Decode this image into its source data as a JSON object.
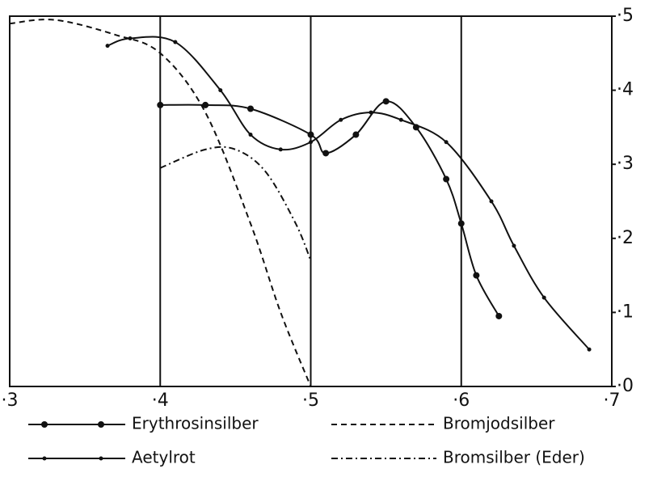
{
  "chart_data": {
    "type": "line",
    "series": [
      {
        "name": "Erythrosinsilber",
        "color": "#111111",
        "dash": "solid",
        "marker": "big",
        "x": [
          0.4,
          0.43,
          0.46,
          0.5,
          0.51,
          0.53,
          0.55,
          0.57,
          0.59,
          0.6,
          0.61,
          0.625
        ],
        "values": [
          0.38,
          0.38,
          0.375,
          0.34,
          0.315,
          0.34,
          0.385,
          0.35,
          0.28,
          0.22,
          0.15,
          0.095
        ]
      },
      {
        "name": "Bromjodsilber",
        "color": "#111111",
        "dash": "dashed",
        "marker": "none",
        "x": [
          0.3,
          0.33,
          0.37,
          0.4,
          0.43,
          0.46,
          0.48,
          0.5
        ],
        "values": [
          0.49,
          0.495,
          0.475,
          0.45,
          0.37,
          0.22,
          0.1,
          0.0
        ]
      },
      {
        "name": "Aetylrot",
        "color": "#111111",
        "dash": "solid",
        "marker": "small",
        "x": [
          0.365,
          0.38,
          0.41,
          0.44,
          0.46,
          0.48,
          0.5,
          0.52,
          0.54,
          0.56,
          0.59,
          0.62,
          0.635,
          0.655,
          0.685
        ],
        "values": [
          0.46,
          0.47,
          0.465,
          0.4,
          0.34,
          0.32,
          0.33,
          0.36,
          0.37,
          0.36,
          0.33,
          0.25,
          0.19,
          0.12,
          0.05
        ]
      },
      {
        "name": "Bromsilber (Eder)",
        "color": "#111111",
        "dash": "dashdot",
        "marker": "none",
        "x": [
          0.4,
          0.43,
          0.45,
          0.47,
          0.49,
          0.5
        ],
        "values": [
          0.295,
          0.32,
          0.32,
          0.29,
          0.22,
          0.17
        ]
      }
    ],
    "xlim": [
      0.3,
      0.7
    ],
    "xticks": [
      {
        "value": 0.3,
        "label": "·3"
      },
      {
        "value": 0.4,
        "label": "·4"
      },
      {
        "value": 0.5,
        "label": "·5"
      },
      {
        "value": 0.6,
        "label": "·6"
      },
      {
        "value": 0.7,
        "label": "·7"
      }
    ],
    "ylim": [
      0,
      0.5
    ],
    "yticks": [
      {
        "value": 0,
        "label": "·0"
      },
      {
        "value": 0.1,
        "label": "·1"
      },
      {
        "value": 0.2,
        "label": "·2"
      },
      {
        "value": 0.3,
        "label": "·3"
      },
      {
        "value": 0.4,
        "label": "·4"
      },
      {
        "value": 0.5,
        "label": "·5"
      }
    ],
    "grid": true
  }
}
